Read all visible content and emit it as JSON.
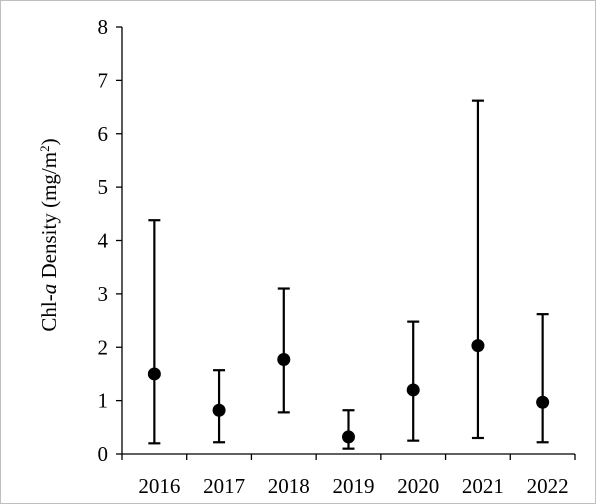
{
  "chart_data": {
    "type": "scatter",
    "title": "",
    "xlabel": "",
    "ylabel": {
      "prefix": "Chl-",
      "italic": "a",
      "rest": " Density  (mg/m",
      "superscript": "2",
      "suffix": ")"
    },
    "categories": [
      "2016",
      "2017",
      "2018",
      "2019",
      "2020",
      "2021",
      "2022"
    ],
    "values": [
      1.5,
      0.82,
      1.77,
      0.32,
      1.2,
      2.03,
      0.97
    ],
    "err_low": [
      0.2,
      0.22,
      0.78,
      0.1,
      0.25,
      0.3,
      0.22
    ],
    "err_high": [
      4.38,
      1.57,
      3.1,
      0.82,
      2.48,
      6.62,
      2.62
    ],
    "ylim": [
      0,
      8
    ],
    "yticks": [
      "0",
      "1",
      "2",
      "3",
      "4",
      "5",
      "6",
      "7",
      "8"
    ],
    "grid": false,
    "legend": "none",
    "colors": {
      "marker": "#000000",
      "axis": "#000000",
      "border": "#bfbfbf"
    }
  }
}
